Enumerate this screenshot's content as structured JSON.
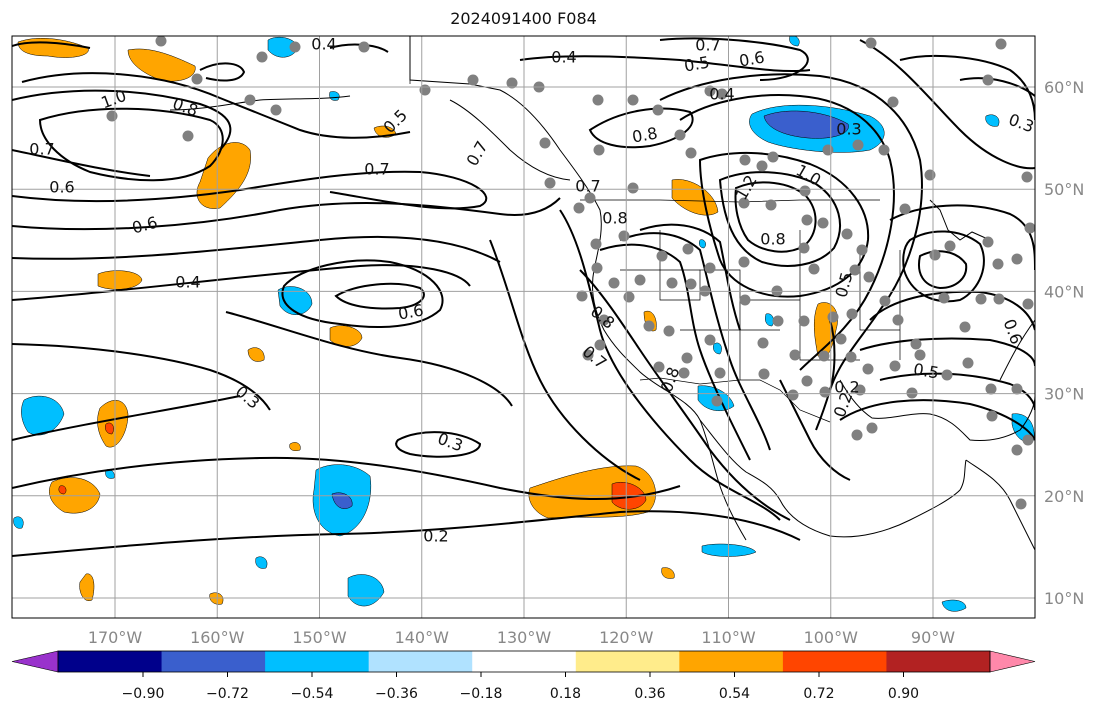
{
  "title": "2024091400 F084",
  "map": {
    "lon_ticks": [
      -170,
      -160,
      -150,
      -140,
      -130,
      -120,
      -110,
      -100,
      -90
    ],
    "lon_labels": [
      "170°W",
      "160°W",
      "150°W",
      "140°W",
      "130°W",
      "120°W",
      "110°W",
      "100°W",
      "90°W"
    ],
    "lat_ticks": [
      10,
      20,
      30,
      40,
      50,
      60
    ],
    "lat_labels": [
      "10°N",
      "20°N",
      "30°N",
      "40°N",
      "50°N",
      "60°N"
    ],
    "contour_labels": [
      "1.0",
      "0.8",
      "0.7",
      "0.6",
      "0.6",
      "0.4",
      "0.4",
      "0.7",
      "0.6",
      "0.3",
      "0.3",
      "0.2",
      "0.4",
      "0.5",
      "0.7",
      "0.7",
      "0.8",
      "0.7",
      "0.8",
      "0.6",
      "0.5",
      "0.4",
      "0.8",
      "0.3",
      "1.2",
      "1.0",
      "0.8",
      "0.5",
      "0.7",
      "0.8",
      "0.3",
      "0.5",
      "0.2",
      "0.2",
      "0.6"
    ],
    "colors": {
      "contour": "#000000",
      "coast": "#000000",
      "grid": "#a0a0a0",
      "station": "#808080"
    }
  },
  "colorbar": {
    "ticks": [
      "−0.90",
      "−0.72",
      "−0.54",
      "−0.36",
      "−0.18",
      "0.18",
      "0.36",
      "0.54",
      "0.72",
      "0.90"
    ],
    "bins": [
      "#9932cc",
      "#00008b",
      "#3a5fcd",
      "#00bfff",
      "#b0e2ff",
      "#ffffff",
      "#ffec8b",
      "#ffa500",
      "#ff4500",
      "#b22222",
      "#ff88aa"
    ]
  }
}
